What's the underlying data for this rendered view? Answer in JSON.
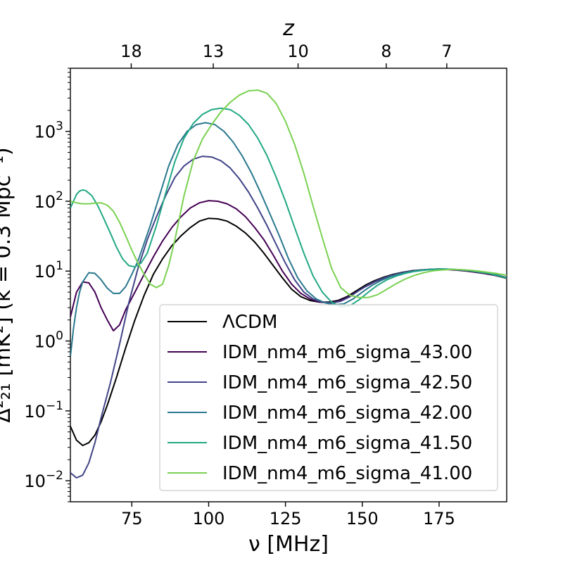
{
  "chart_data": {
    "type": "line",
    "xlabel": "ν [MHz]",
    "ylabel": "Δ²₂₁ [mK²] (k = 0.3 Mpc⁻¹)",
    "top_axis_label": "z",
    "xlim": [
      55,
      197
    ],
    "ylim": [
      0.005,
      8000
    ],
    "yscale": "log",
    "x_ticks": [
      75,
      100,
      125,
      150,
      175
    ],
    "y_ticks": [
      {
        "value": 0.01,
        "mantissa": "10",
        "exp": "−2"
      },
      {
        "value": 0.1,
        "mantissa": "10",
        "exp": "−1"
      },
      {
        "value": 1,
        "mantissa": "10",
        "exp": "0"
      },
      {
        "value": 10,
        "mantissa": "10",
        "exp": "1"
      },
      {
        "value": 100,
        "mantissa": "10",
        "exp": "2"
      },
      {
        "value": 1000,
        "mantissa": "10",
        "exp": "3"
      }
    ],
    "top_ticks": [
      {
        "label": "18",
        "nu": 74.8
      },
      {
        "label": "13",
        "nu": 101.5
      },
      {
        "label": "10",
        "nu": 129.1
      },
      {
        "label": "8",
        "nu": 157.8
      },
      {
        "label": "7",
        "nu": 177.5
      }
    ],
    "grid": false,
    "legend": "lower-right",
    "series": [
      {
        "name": "ΛCDM",
        "color": "#000000",
        "x": [
          55,
          57,
          59,
          61,
          63,
          65,
          67,
          70,
          73,
          76,
          79,
          82,
          85,
          88,
          91,
          94,
          97,
          100,
          103,
          106,
          109,
          112,
          115,
          118,
          121,
          124,
          127,
          130,
          133,
          136,
          139,
          142,
          145,
          148,
          151,
          154,
          157,
          160,
          163,
          166,
          169,
          172,
          175,
          178,
          181,
          184,
          187,
          190,
          193,
          197
        ],
        "y": [
          0.06,
          0.038,
          0.032,
          0.035,
          0.045,
          0.07,
          0.12,
          0.3,
          0.8,
          2.0,
          4.5,
          9,
          15,
          23,
          32,
          42,
          52,
          57,
          56,
          52,
          44,
          35,
          26,
          18,
          12,
          8,
          5.5,
          4.3,
          3.8,
          3.6,
          3.6,
          3.8,
          4.3,
          5.2,
          6.3,
          7.3,
          8.2,
          9.0,
          9.6,
          10.1,
          10.4,
          10.6,
          10.7,
          10.6,
          10.4,
          10.1,
          9.7,
          9.2,
          8.7,
          7.9
        ]
      },
      {
        "name": "IDM_nm4_m6_sigma_43.00",
        "color": "#440154",
        "x": [
          55,
          57,
          59,
          61,
          63,
          65,
          67,
          69,
          71,
          73,
          76,
          79,
          82,
          85,
          88,
          91,
          94,
          97,
          100,
          103,
          106,
          109,
          112,
          115,
          118,
          121,
          124,
          127,
          130,
          133,
          136,
          139,
          142,
          145,
          148,
          151,
          154,
          157,
          160,
          163,
          166,
          169,
          172,
          175,
          178,
          181,
          184,
          187,
          190,
          193,
          197
        ],
        "y": [
          2.2,
          5,
          7,
          6.8,
          5,
          3,
          2,
          1.4,
          1.7,
          2.8,
          5,
          9,
          16,
          27,
          42,
          60,
          80,
          95,
          102,
          100,
          92,
          78,
          60,
          42,
          28,
          17,
          10,
          6.5,
          4.8,
          4.0,
          3.6,
          3.5,
          3.7,
          4.2,
          5,
          6,
          7,
          8,
          8.8,
          9.5,
          10,
          10.3,
          10.5,
          10.6,
          10.5,
          10.3,
          10,
          9.6,
          9.2,
          8.7,
          8.0
        ]
      },
      {
        "name": "IDM_nm4_m6_sigma_42.50",
        "color": "#414487",
        "x": [
          55,
          57,
          59,
          61,
          63,
          65,
          68,
          71,
          74,
          77,
          80,
          83,
          86,
          89,
          92,
          95,
          98,
          101,
          104,
          107,
          110,
          113,
          116,
          119,
          122,
          125,
          128,
          131,
          134,
          137,
          140,
          143,
          146,
          149,
          152,
          155,
          158,
          161,
          164,
          167,
          170,
          173,
          176,
          179,
          182,
          185,
          188,
          191,
          194,
          197
        ],
        "y": [
          0.013,
          0.011,
          0.012,
          0.018,
          0.035,
          0.08,
          0.25,
          0.9,
          3.5,
          11,
          28,
          60,
          120,
          220,
          320,
          400,
          440,
          430,
          380,
          300,
          210,
          135,
          80,
          45,
          24,
          13,
          7.5,
          5,
          4,
          3.6,
          3.5,
          3.7,
          4.3,
          5.3,
          6.4,
          7.4,
          8.3,
          9.1,
          9.7,
          10.1,
          10.4,
          10.6,
          10.7,
          10.6,
          10.4,
          10.1,
          9.7,
          9.3,
          8.8,
          8.1
        ]
      },
      {
        "name": "IDM_nm4_m6_sigma_42.00",
        "color": "#2a788e",
        "x": [
          55,
          56,
          57,
          58,
          59,
          61,
          63,
          65,
          67,
          69,
          71,
          73,
          75,
          77,
          79,
          81,
          84,
          87,
          90,
          93,
          96,
          99,
          102,
          105,
          108,
          111,
          114,
          117,
          120,
          123,
          126,
          129,
          132,
          135,
          138,
          141,
          144,
          147,
          150,
          153,
          156,
          159,
          162,
          165,
          168,
          171,
          174,
          177,
          180,
          183,
          186,
          189,
          192,
          197
        ],
        "y": [
          0.6,
          1.5,
          3,
          5,
          7,
          9.5,
          9.3,
          7.5,
          5.7,
          4.8,
          4.8,
          6,
          9,
          14,
          25,
          45,
          120,
          320,
          650,
          1000,
          1250,
          1330,
          1250,
          1000,
          700,
          440,
          250,
          130,
          65,
          32,
          15,
          8,
          5.2,
          4,
          3.5,
          3.3,
          3.4,
          4,
          5,
          6.2,
          7.3,
          8.3,
          9.1,
          9.7,
          10.2,
          10.5,
          10.7,
          10.7,
          10.6,
          10.4,
          10.1,
          9.7,
          9.3,
          8.0
        ]
      },
      {
        "name": "IDM_nm4_m6_sigma_41.50",
        "color": "#22a884",
        "x": [
          55,
          56,
          57,
          58,
          59,
          60,
          62,
          64,
          66,
          68,
          70,
          72,
          74,
          76,
          78,
          80,
          83,
          86,
          89,
          92,
          95,
          98,
          101,
          104,
          107,
          110,
          113,
          116,
          119,
          122,
          125,
          128,
          131,
          134,
          137,
          140,
          143,
          146,
          149,
          152,
          155,
          158,
          161,
          164,
          167,
          170,
          173,
          176,
          179,
          182,
          185,
          188,
          191,
          197
        ],
        "y": [
          80,
          100,
          125,
          140,
          145,
          142,
          120,
          85,
          55,
          35,
          22,
          15,
          12,
          11.5,
          13,
          18,
          45,
          130,
          370,
          800,
          1300,
          1750,
          2050,
          2150,
          2050,
          1700,
          1250,
          800,
          450,
          220,
          100,
          42,
          18,
          8.5,
          5,
          3.6,
          3.1,
          3.2,
          3.9,
          5,
          6.3,
          7.5,
          8.5,
          9.3,
          9.9,
          10.3,
          10.6,
          10.7,
          10.6,
          10.4,
          10.1,
          9.7,
          9.3,
          8.0
        ]
      },
      {
        "name": "IDM_nm4_m6_sigma_41.00",
        "color": "#7ad151",
        "x": [
          55,
          57,
          59,
          61,
          63,
          65,
          67,
          69,
          71,
          73,
          75,
          77,
          79,
          81,
          83,
          85,
          87,
          89,
          92,
          95,
          98,
          101,
          104,
          107,
          110,
          113,
          116,
          119,
          122,
          125,
          128,
          131,
          134,
          137,
          140,
          143,
          146,
          149,
          152,
          155,
          158,
          161,
          164,
          167,
          170,
          173,
          176,
          179,
          182,
          185,
          188,
          191,
          194,
          197
        ],
        "y": [
          100,
          95,
          92,
          92,
          94,
          95,
          88,
          72,
          50,
          32,
          20,
          13,
          9,
          6.5,
          5.8,
          6.5,
          12,
          28,
          120,
          380,
          780,
          1250,
          1900,
          2600,
          3300,
          3800,
          3900,
          3500,
          2500,
          1400,
          650,
          250,
          85,
          30,
          11,
          5.8,
          4.5,
          4.2,
          4.2,
          4.6,
          5.5,
          6.6,
          7.7,
          8.7,
          9.5,
          10.1,
          10.4,
          10.6,
          10.5,
          10.3,
          10,
          9.6,
          9.2,
          8.7
        ]
      }
    ]
  }
}
